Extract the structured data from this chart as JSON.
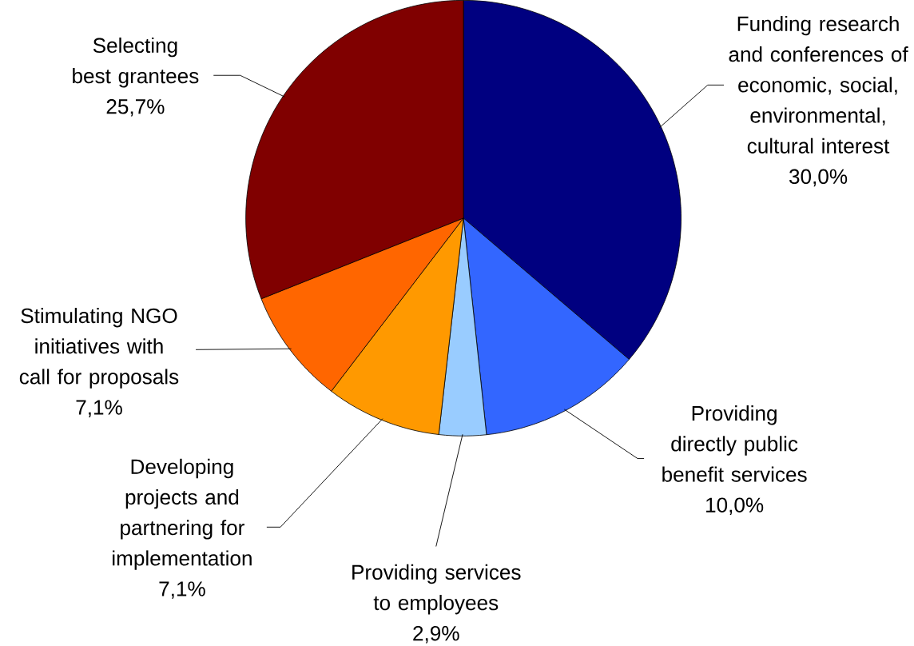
{
  "chart_data": {
    "type": "pie",
    "categories": [
      "Funding research and conferences of economic, social, environmental, cultural interest",
      "Providing directly public benefit services",
      "Providing services to employees",
      "Developing projects and partnering for implementation",
      "Stimulating NGO initiatives with call for proposals",
      "Selecting best grantees"
    ],
    "values": [
      30.0,
      10.0,
      2.9,
      7.1,
      7.1,
      25.7
    ],
    "value_labels": [
      "30,0%",
      "10,0%",
      "2,9%",
      "7,1%",
      "7,1%",
      "25,7%"
    ],
    "colors": [
      "#000080",
      "#3366ff",
      "#99ccff",
      "#ff9900",
      "#ff6600",
      "#800000"
    ]
  }
}
